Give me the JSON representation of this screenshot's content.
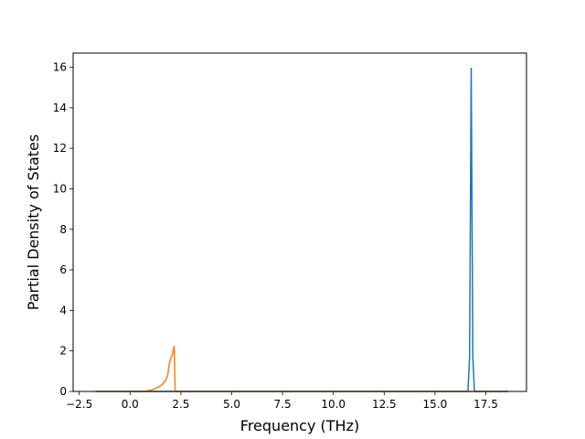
{
  "chart_data": {
    "type": "line",
    "title": "",
    "xlabel": "Frequency (THz)",
    "ylabel": "Partial Density of States",
    "xlim": [
      -2.8,
      19.5
    ],
    "ylim": [
      0,
      16.7
    ],
    "xticks": [
      -2.5,
      0.0,
      2.5,
      5.0,
      7.5,
      10.0,
      12.5,
      15.0,
      17.5
    ],
    "xtick_labels": [
      "−2.5",
      "0.0",
      "2.5",
      "5.0",
      "7.5",
      "10.0",
      "12.5",
      "15.0",
      "17.5"
    ],
    "yticks": [
      0,
      2,
      4,
      6,
      8,
      10,
      12,
      14,
      16
    ],
    "ytick_labels": [
      "0",
      "2",
      "4",
      "6",
      "8",
      "10",
      "12",
      "14",
      "16"
    ],
    "grid": false,
    "legend": "none",
    "series": [
      {
        "color": "#1f77b4",
        "x": [
          -1.7,
          16.55,
          16.62,
          16.7,
          16.78,
          16.86,
          16.94,
          17.05,
          18.6
        ],
        "y": [
          0,
          0,
          0,
          1.7,
          15.95,
          1.7,
          0,
          0,
          0
        ]
      },
      {
        "color": "#ff7f0e",
        "x": [
          -1.7,
          0.5,
          0.8,
          1.0,
          1.2,
          1.4,
          1.6,
          1.75,
          1.85,
          1.92,
          2.0,
          2.08,
          2.13,
          2.17,
          2.22,
          2.3,
          18.6
        ],
        "y": [
          0,
          0,
          0.02,
          0.06,
          0.12,
          0.22,
          0.35,
          0.55,
          0.8,
          1.3,
          1.65,
          1.8,
          2.05,
          2.23,
          0,
          0,
          0
        ]
      }
    ]
  }
}
